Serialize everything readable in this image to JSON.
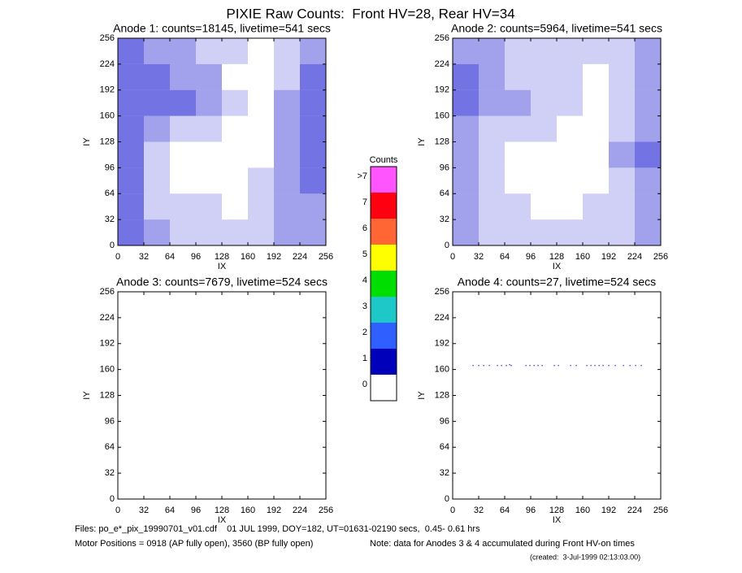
{
  "chart_data": {
    "type": "heatmap",
    "title": "PIXIE Raw Counts:  Front HV=28, Rear HV=34",
    "panels": [
      {
        "type": "heatmap",
        "title": "Anode 1: counts=18145, livetime=541 secs",
        "xlabel": "IX",
        "ylabel": "IY",
        "xlim": [
          0,
          256
        ],
        "ylim": [
          0,
          256
        ],
        "xticks": [
          0,
          32,
          64,
          96,
          128,
          160,
          192,
          224,
          256
        ],
        "yticks": [
          0,
          32,
          64,
          96,
          128,
          160,
          192,
          224,
          256
        ],
        "bins": [
          0,
          32,
          64,
          96,
          128,
          160,
          192,
          224,
          256
        ],
        "density": [
          [
            3,
            2,
            1,
            1,
            1,
            1,
            2,
            2
          ],
          [
            3,
            1,
            1,
            1,
            0,
            1,
            2,
            2
          ],
          [
            3,
            1,
            0,
            0,
            0,
            1,
            2,
            3
          ],
          [
            3,
            1,
            0,
            0,
            0,
            0,
            2,
            3
          ],
          [
            3,
            2,
            1,
            1,
            0,
            0,
            2,
            3
          ],
          [
            3,
            3,
            3,
            2,
            1,
            0,
            2,
            3
          ],
          [
            3,
            3,
            2,
            2,
            0,
            0,
            1,
            3
          ],
          [
            3,
            2,
            2,
            1,
            1,
            0,
            1,
            2
          ]
        ]
      },
      {
        "type": "heatmap",
        "title": "Anode 2: counts=5964, livetime=541 secs",
        "xlabel": "IX",
        "ylabel": "IY",
        "xlim": [
          0,
          256
        ],
        "ylim": [
          0,
          256
        ],
        "xticks": [
          0,
          32,
          64,
          96,
          128,
          160,
          192,
          224,
          256
        ],
        "yticks": [
          0,
          32,
          64,
          96,
          128,
          160,
          192,
          224,
          256
        ],
        "bins": [
          0,
          32,
          64,
          96,
          128,
          160,
          192,
          224,
          256
        ],
        "density": [
          [
            2,
            1,
            1,
            1,
            1,
            1,
            1,
            2
          ],
          [
            2,
            1,
            1,
            0,
            0,
            1,
            1,
            2
          ],
          [
            2,
            1,
            0,
            0,
            0,
            0,
            1,
            2
          ],
          [
            2,
            1,
            0,
            0,
            0,
            0,
            2,
            3
          ],
          [
            2,
            1,
            1,
            1,
            0,
            0,
            1,
            2
          ],
          [
            3,
            2,
            2,
            1,
            1,
            0,
            1,
            2
          ],
          [
            3,
            2,
            1,
            1,
            1,
            0,
            1,
            2
          ],
          [
            2,
            2,
            1,
            1,
            1,
            1,
            1,
            2
          ]
        ]
      },
      {
        "type": "heatmap",
        "title": "Anode 3: counts=7679, livetime=524 secs",
        "xlabel": "IX",
        "ylabel": "IY",
        "xlim": [
          0,
          256
        ],
        "ylim": [
          0,
          256
        ],
        "xticks": [
          0,
          32,
          64,
          96,
          128,
          160,
          192,
          224,
          256
        ],
        "yticks": [
          0,
          32,
          64,
          96,
          128,
          160,
          192,
          224,
          256
        ],
        "bins": [
          0,
          32,
          64,
          96,
          128,
          160,
          192,
          224,
          256
        ],
        "density": [
          [
            0,
            0,
            0,
            0,
            0,
            0,
            0,
            0
          ],
          [
            0,
            0,
            0,
            0,
            0,
            0,
            0,
            0
          ],
          [
            0,
            0,
            0,
            0,
            0,
            0,
            0,
            0
          ],
          [
            0,
            0,
            0,
            0,
            0,
            0,
            0,
            0
          ],
          [
            0,
            0,
            0,
            0,
            0,
            0,
            0,
            0
          ],
          [
            0,
            0,
            0,
            0,
            0,
            0,
            0,
            0
          ],
          [
            0,
            0,
            0,
            0,
            0,
            0,
            0,
            0
          ],
          [
            0,
            0,
            0,
            0,
            0,
            0,
            0,
            0
          ]
        ]
      },
      {
        "type": "scatter",
        "title": "Anode 4: counts=27, livetime=524 secs",
        "xlabel": "IX",
        "ylabel": "IY",
        "xlim": [
          0,
          256
        ],
        "ylim": [
          0,
          256
        ],
        "xticks": [
          0,
          32,
          64,
          96,
          128,
          160,
          192,
          224,
          256
        ],
        "yticks": [
          0,
          32,
          64,
          96,
          128,
          160,
          192,
          224,
          256
        ],
        "x": [
          25,
          32,
          38,
          45,
          55,
          60,
          66,
          70,
          72,
          90,
          95,
          100,
          105,
          110,
          125,
          130,
          145,
          152,
          165,
          170,
          175,
          180,
          185,
          192,
          200,
          210,
          218,
          225,
          232
        ],
        "y": [
          165,
          165,
          165,
          165,
          165,
          165,
          165,
          166,
          165,
          165,
          165,
          165,
          165,
          165,
          165,
          165,
          165,
          165,
          165,
          165,
          165,
          165,
          165,
          165,
          165,
          165,
          165,
          165,
          165
        ]
      }
    ],
    "colorbar": {
      "title": "Counts",
      "levels": [
        {
          "label": "0",
          "color": "#ffffff"
        },
        {
          "label": "1",
          "color": "#0000bb"
        },
        {
          "label": "2",
          "color": "#2f5fff"
        },
        {
          "label": "3",
          "color": "#1fc8c8"
        },
        {
          "label": "4",
          "color": "#00dd00"
        },
        {
          "label": "5",
          "color": "#ffff00"
        },
        {
          "label": "6",
          "color": "#ff6633"
        },
        {
          "label": "7",
          "color": "#ff0011"
        },
        {
          "label": ">7",
          "color": "#ff55ff"
        }
      ]
    },
    "footer": [
      "Files: po_e*_pix_19990701_v01.cdf    01 JUL 1999, DOY=182, UT=01631-02190 secs,  0.45- 0.61 hrs",
      "Motor Positions = 0918 (AP fully open), 3560 (BP fully open)",
      "Note: data for Anodes 3 & 4 accumulated during Front HV-on times",
      "(created:  3-Jul-1999 02:13:03.00)"
    ]
  }
}
